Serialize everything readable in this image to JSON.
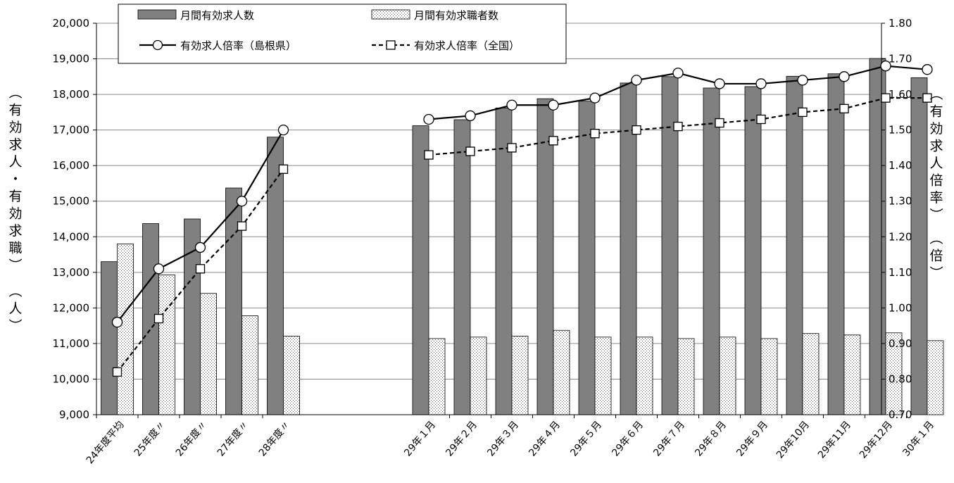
{
  "chart_data": {
    "type": "bar+line",
    "categories": [
      "24年度平均",
      "25年度〃",
      "26年度〃",
      "27年度〃",
      "28年度〃",
      "29年１月",
      "29年２月",
      "29年３月",
      "29年４月",
      "29年５月",
      "29年６月",
      "29年７月",
      "29年８月",
      "29年９月",
      "29年10月",
      "29年11月",
      "29年12月",
      "30年１月"
    ],
    "series": [
      {
        "name": "月間有効求人数",
        "type": "bar",
        "axis": "left",
        "color": "#808080",
        "values": [
          13300,
          14370,
          14500,
          15370,
          16800,
          17120,
          17290,
          17620,
          17880,
          17810,
          18320,
          18500,
          18180,
          18220,
          18510,
          18580,
          19010,
          18470
        ]
      },
      {
        "name": "月間有効求職者数",
        "type": "bar",
        "axis": "left",
        "pattern": "dotted",
        "values": [
          13800,
          12930,
          12410,
          11780,
          11210,
          11140,
          11180,
          11210,
          11370,
          11180,
          11180,
          11140,
          11180,
          11140,
          11280,
          11240,
          11300,
          11080
        ]
      },
      {
        "name": "有効求人倍率（島根県）",
        "type": "line",
        "axis": "right",
        "marker": "circle",
        "dash": "solid",
        "values": [
          0.96,
          1.11,
          1.17,
          1.3,
          1.5,
          1.53,
          1.54,
          1.57,
          1.57,
          1.59,
          1.64,
          1.66,
          1.63,
          1.63,
          1.64,
          1.65,
          1.68,
          1.67
        ]
      },
      {
        "name": "有効求人倍率（全国）",
        "type": "line",
        "axis": "right",
        "marker": "square",
        "dash": "dashed",
        "values": [
          0.82,
          0.97,
          1.11,
          1.23,
          1.39,
          1.43,
          1.44,
          1.45,
          1.47,
          1.49,
          1.5,
          1.51,
          1.52,
          1.53,
          1.55,
          1.56,
          1.59,
          1.59
        ]
      }
    ],
    "y_left": {
      "label": "（有効求人・有効求職）（人）",
      "label_lines": [
        "（有効求人・有効求職）",
        "（人）"
      ],
      "ylim": [
        9000,
        20000
      ],
      "ticks": [
        "9,000",
        "10,000",
        "11,000",
        "12,000",
        "13,000",
        "14,000",
        "15,000",
        "16,000",
        "17,000",
        "18,000",
        "19,000",
        "20,000"
      ]
    },
    "y_right": {
      "label": "（有効求人倍率）（倍）",
      "label_lines": [
        "（有効求人倍率）",
        "（倍）"
      ],
      "ylim": [
        0.7,
        1.8
      ],
      "ticks": [
        "0.70",
        "0.80",
        "0.90",
        "1.00",
        "1.10",
        "1.20",
        "1.30",
        "1.40",
        "1.50",
        "1.60",
        "1.70",
        "1.80"
      ]
    },
    "grid": true,
    "legend_position": "top-left"
  }
}
